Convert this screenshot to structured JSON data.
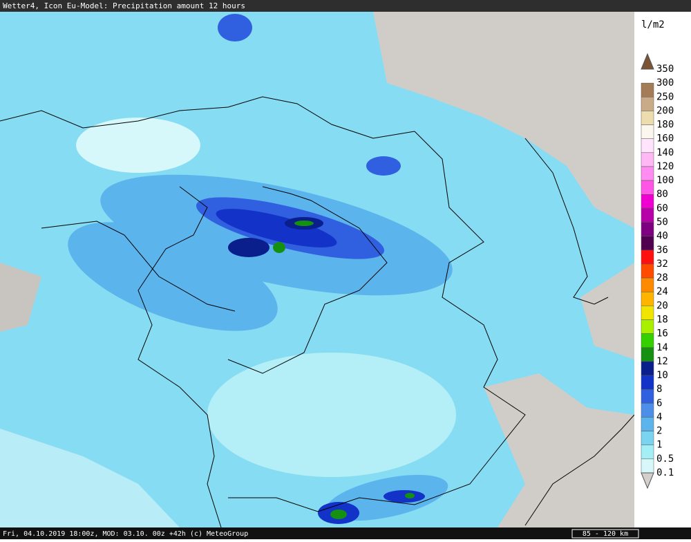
{
  "header": {
    "title": "Wetter4, Icon Eu-Model: Precipitation amount 12 hours"
  },
  "legend": {
    "unit": "l/m2",
    "entries": [
      {
        "label": "350",
        "color": "#7b5434"
      },
      {
        "label": "300",
        "color": "#a47c58"
      },
      {
        "label": "250",
        "color": "#c9ab88"
      },
      {
        "label": "200",
        "color": "#ecdcae"
      },
      {
        "label": "180",
        "color": "#fbf6ee"
      },
      {
        "label": "160",
        "color": "#ffe4fb"
      },
      {
        "label": "140",
        "color": "#ffb8f4"
      },
      {
        "label": "120",
        "color": "#ff8cf0"
      },
      {
        "label": "100",
        "color": "#ff55e6"
      },
      {
        "label": "80",
        "color": "#f000d0"
      },
      {
        "label": "60",
        "color": "#b800a8"
      },
      {
        "label": "50",
        "color": "#7e0080"
      },
      {
        "label": "40",
        "color": "#50004f"
      },
      {
        "label": "36",
        "color": "#ff1010"
      },
      {
        "label": "32",
        "color": "#ff4a00"
      },
      {
        "label": "28",
        "color": "#ff8a00"
      },
      {
        "label": "24",
        "color": "#ffb400"
      },
      {
        "label": "20",
        "color": "#f0e400"
      },
      {
        "label": "18",
        "color": "#a8f000"
      },
      {
        "label": "16",
        "color": "#34d000"
      },
      {
        "label": "14",
        "color": "#169010"
      },
      {
        "label": "12",
        "color": "#0a1e8c"
      },
      {
        "label": "10",
        "color": "#1232c8"
      },
      {
        "label": "8",
        "color": "#3060e0"
      },
      {
        "label": "6",
        "color": "#4c8ee8"
      },
      {
        "label": "4",
        "color": "#5cb4ec"
      },
      {
        "label": "2",
        "color": "#7ad4f0"
      },
      {
        "label": "1",
        "color": "#a4eef6"
      },
      {
        "label": "0.5",
        "color": "#d6f8fa"
      },
      {
        "label": "0.1",
        "color": "#d2cfcc"
      }
    ]
  },
  "footer": {
    "text": "Fri, 04.10.2019 18:00z, MOD: 03.10. 00z +42h (c) MeteoGroup",
    "scale": "85 - 120 km"
  }
}
